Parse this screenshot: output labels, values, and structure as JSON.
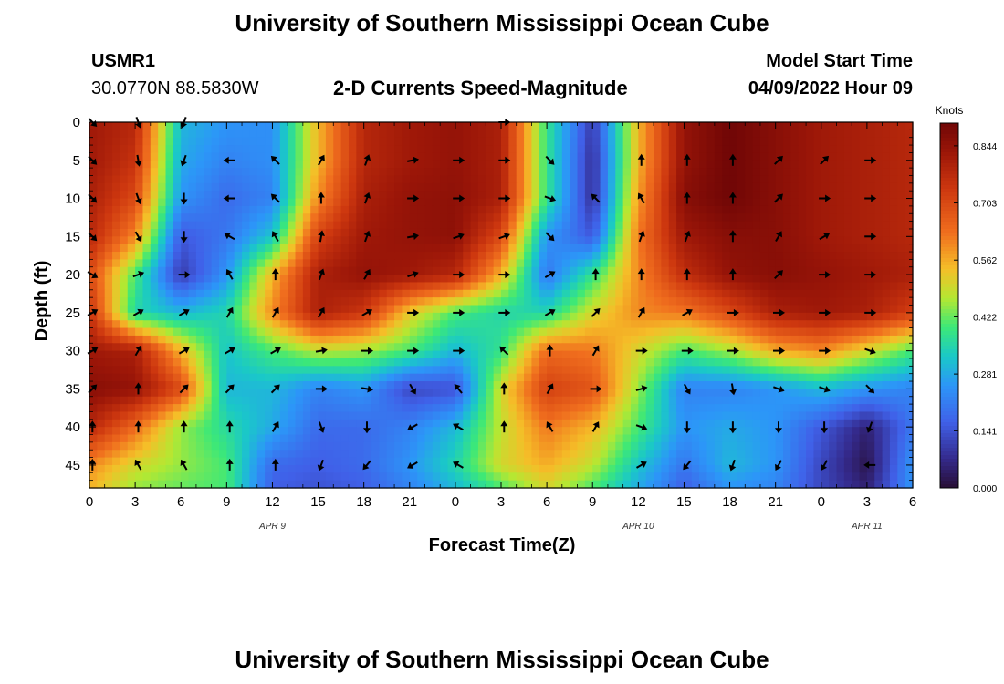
{
  "header": {
    "title": "University of Southern Mississippi Ocean Cube",
    "station_id": "USMR1",
    "coordinates": "30.0770N  88.5830W",
    "product": "2-D Currents Speed-Magnitude",
    "model_start_label": "Model Start Time",
    "model_start_value": "04/09/2022 Hour 09"
  },
  "footer": {
    "title": "University of Southern Mississippi Ocean Cube"
  },
  "chart_data": {
    "type": "heatmap",
    "xlabel": "Forecast Time(Z)",
    "ylabel": "Depth (ft)",
    "x_range_hours": [
      0,
      54
    ],
    "y_range": [
      0,
      48
    ],
    "x_tick_labels": [
      "0",
      "3",
      "6",
      "9",
      "12",
      "15",
      "18",
      "21",
      "0",
      "3",
      "6",
      "9",
      "12",
      "15",
      "18",
      "21",
      "0",
      "3",
      "6"
    ],
    "y_tick_labels": [
      "0",
      "5",
      "10",
      "15",
      "20",
      "25",
      "30",
      "35",
      "40",
      "45"
    ],
    "date_labels": [
      {
        "label": "APR 9",
        "hour": 12
      },
      {
        "label": "APR 10",
        "hour": 36
      },
      {
        "label": "APR 11",
        "hour": 51
      }
    ],
    "colorbar": {
      "unit": "Knots",
      "ticks": [
        "0.844",
        "0.703",
        "0.562",
        "0.422",
        "0.281",
        "0.141",
        "0.000"
      ],
      "min": 0.0,
      "max": 0.9
    },
    "grid_hours": [
      0,
      3,
      6,
      9,
      12,
      15,
      18,
      21,
      24,
      27,
      30,
      33,
      36,
      39,
      42,
      45,
      48,
      51,
      54
    ],
    "grid_depths": [
      0,
      5,
      10,
      15,
      20,
      25,
      30,
      35,
      40,
      45,
      48
    ],
    "speed": [
      [
        0.82,
        0.78,
        0.3,
        0.25,
        0.24,
        0.55,
        0.78,
        0.82,
        0.84,
        0.8,
        0.38,
        0.1,
        0.55,
        0.84,
        0.9,
        0.86,
        0.82,
        0.8,
        0.78
      ],
      [
        0.82,
        0.75,
        0.28,
        0.22,
        0.24,
        0.55,
        0.78,
        0.82,
        0.84,
        0.8,
        0.38,
        0.08,
        0.55,
        0.84,
        0.9,
        0.86,
        0.82,
        0.8,
        0.78
      ],
      [
        0.8,
        0.7,
        0.25,
        0.18,
        0.22,
        0.6,
        0.8,
        0.84,
        0.85,
        0.8,
        0.38,
        0.08,
        0.58,
        0.86,
        0.9,
        0.86,
        0.82,
        0.8,
        0.78
      ],
      [
        0.78,
        0.6,
        0.15,
        0.2,
        0.32,
        0.72,
        0.82,
        0.84,
        0.85,
        0.7,
        0.25,
        0.15,
        0.62,
        0.82,
        0.86,
        0.86,
        0.82,
        0.8,
        0.78
      ],
      [
        0.7,
        0.4,
        0.1,
        0.25,
        0.55,
        0.8,
        0.84,
        0.82,
        0.78,
        0.55,
        0.2,
        0.38,
        0.6,
        0.76,
        0.84,
        0.86,
        0.84,
        0.82,
        0.8
      ],
      [
        0.75,
        0.35,
        0.3,
        0.35,
        0.6,
        0.8,
        0.74,
        0.52,
        0.4,
        0.35,
        0.35,
        0.5,
        0.6,
        0.62,
        0.7,
        0.8,
        0.82,
        0.8,
        0.72
      ],
      [
        0.82,
        0.8,
        0.55,
        0.32,
        0.4,
        0.48,
        0.46,
        0.4,
        0.3,
        0.38,
        0.64,
        0.62,
        0.5,
        0.4,
        0.46,
        0.56,
        0.6,
        0.5,
        0.4
      ],
      [
        0.86,
        0.84,
        0.7,
        0.3,
        0.3,
        0.22,
        0.25,
        0.12,
        0.14,
        0.5,
        0.72,
        0.68,
        0.45,
        0.22,
        0.22,
        0.25,
        0.3,
        0.25,
        0.22
      ],
      [
        0.78,
        0.64,
        0.45,
        0.36,
        0.28,
        0.18,
        0.18,
        0.22,
        0.3,
        0.48,
        0.62,
        0.55,
        0.4,
        0.25,
        0.28,
        0.25,
        0.15,
        0.05,
        0.2
      ],
      [
        0.6,
        0.5,
        0.45,
        0.4,
        0.18,
        0.16,
        0.18,
        0.25,
        0.35,
        0.5,
        0.56,
        0.48,
        0.32,
        0.2,
        0.3,
        0.25,
        0.12,
        0.02,
        0.25
      ],
      [
        0.55,
        0.45,
        0.42,
        0.4,
        0.16,
        0.14,
        0.16,
        0.22,
        0.3,
        0.4,
        0.5,
        0.4,
        0.28,
        0.16,
        0.25,
        0.22,
        0.12,
        0.05,
        0.25
      ]
    ],
    "arrows": [
      {
        "row": 0,
        "dirs": [
          135,
          160,
          200,
          null,
          null,
          null,
          null,
          null,
          null,
          90,
          null,
          null,
          null,
          null,
          null,
          null,
          null,
          null,
          null
        ]
      },
      {
        "row": 5,
        "dirs": [
          135,
          170,
          200,
          270,
          315,
          30,
          20,
          80,
          90,
          90,
          135,
          null,
          0,
          0,
          0,
          45,
          45,
          90,
          null
        ]
      },
      {
        "row": 10,
        "dirs": [
          135,
          160,
          180,
          270,
          315,
          0,
          20,
          90,
          90,
          90,
          110,
          315,
          330,
          0,
          0,
          45,
          90,
          90,
          null
        ]
      },
      {
        "row": 15,
        "dirs": [
          135,
          150,
          180,
          300,
          330,
          10,
          20,
          80,
          70,
          70,
          135,
          null,
          20,
          20,
          0,
          30,
          60,
          90,
          null
        ]
      },
      {
        "row": 20,
        "dirs": [
          120,
          70,
          90,
          330,
          0,
          20,
          30,
          70,
          90,
          90,
          60,
          0,
          0,
          0,
          0,
          45,
          90,
          90,
          null
        ]
      },
      {
        "row": 25,
        "dirs": [
          60,
          60,
          60,
          30,
          30,
          30,
          60,
          90,
          90,
          90,
          60,
          45,
          30,
          60,
          90,
          90,
          90,
          90,
          null
        ]
      },
      {
        "row": 30,
        "dirs": [
          60,
          30,
          60,
          60,
          60,
          80,
          90,
          90,
          90,
          315,
          0,
          30,
          90,
          90,
          90,
          90,
          90,
          110,
          null
        ]
      },
      {
        "row": 35,
        "dirs": [
          45,
          0,
          45,
          45,
          45,
          90,
          100,
          150,
          320,
          0,
          30,
          90,
          75,
          150,
          170,
          110,
          110,
          135,
          null
        ]
      },
      {
        "row": 40,
        "dirs": [
          0,
          0,
          0,
          0,
          30,
          160,
          180,
          240,
          300,
          0,
          330,
          30,
          110,
          180,
          180,
          180,
          180,
          200,
          null
        ]
      },
      {
        "row": 45,
        "dirs": [
          0,
          330,
          330,
          0,
          0,
          200,
          220,
          240,
          300,
          null,
          null,
          null,
          60,
          220,
          200,
          210,
          210,
          270,
          null
        ]
      }
    ]
  }
}
